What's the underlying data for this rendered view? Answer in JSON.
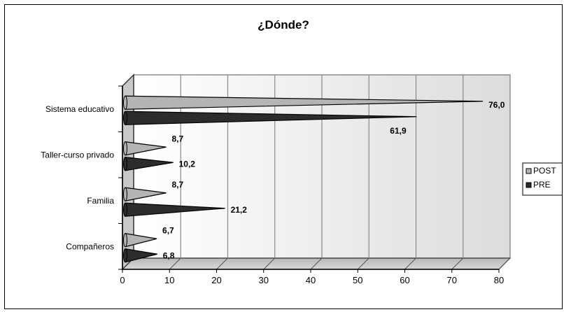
{
  "chart_data": {
    "type": "bar",
    "title": "¿Dónde?",
    "categories": [
      "Sistema educativo",
      "Taller-curso privado",
      "Familia",
      "Compañeros"
    ],
    "series": [
      {
        "name": "POST",
        "values": [
          76.0,
          8.7,
          8.7,
          6.7
        ],
        "labels": [
          "76,0",
          "8,7",
          "8,7",
          "6,7"
        ],
        "color": "#b4b4b4"
      },
      {
        "name": "PRE",
        "values": [
          61.9,
          10.2,
          21.2,
          6.8
        ],
        "labels": [
          "61,9",
          "10,2",
          "21,2",
          "6,8"
        ],
        "color": "#2c2c2c"
      }
    ],
    "xlim": [
      0,
      80
    ],
    "ticks": [
      "0",
      "10",
      "20",
      "30",
      "40",
      "50",
      "60",
      "70",
      "80"
    ],
    "orientation": "horizontal",
    "style": "3d-cone",
    "grid": true,
    "legend_position": "right"
  }
}
